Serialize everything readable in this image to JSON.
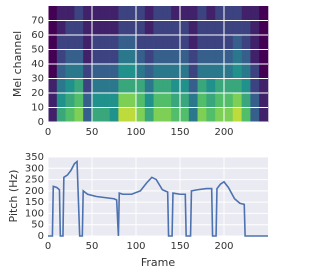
{
  "chart_data": [
    {
      "type": "heatmap",
      "ylabel": "Mel channel",
      "colormap": "viridis",
      "grid": true,
      "xlim": [
        0,
        250
      ],
      "ylim": [
        0,
        80
      ],
      "xticks": [
        0,
        50,
        100,
        150,
        200
      ],
      "yticks": [
        0,
        10,
        20,
        30,
        40,
        50,
        60,
        70
      ],
      "xbins": [
        0,
        10,
        20,
        30,
        40,
        50,
        60,
        70,
        80,
        90,
        100,
        110,
        120,
        130,
        140,
        150,
        160,
        170,
        180,
        190,
        200,
        210,
        220,
        230,
        240,
        250
      ],
      "ybins": [
        0,
        10,
        20,
        30,
        40,
        50,
        60,
        70,
        80
      ],
      "z": [
        [
          0.1,
          0.6,
          0.7,
          0.8,
          0.3,
          0.6,
          0.6,
          0.5,
          0.9,
          0.9,
          0.8,
          0.6,
          0.8,
          0.8,
          0.7,
          0.7,
          0.4,
          0.8,
          0.7,
          0.8,
          0.8,
          0.9,
          0.7,
          0.3,
          0.1
        ],
        [
          0.1,
          0.5,
          0.6,
          0.7,
          0.3,
          0.5,
          0.5,
          0.5,
          0.8,
          0.8,
          0.7,
          0.5,
          0.7,
          0.7,
          0.6,
          0.6,
          0.4,
          0.7,
          0.6,
          0.7,
          0.7,
          0.8,
          0.6,
          0.3,
          0.1
        ],
        [
          0.1,
          0.4,
          0.5,
          0.6,
          0.2,
          0.4,
          0.4,
          0.4,
          0.6,
          0.6,
          0.6,
          0.4,
          0.6,
          0.6,
          0.5,
          0.5,
          0.3,
          0.6,
          0.5,
          0.6,
          0.6,
          0.6,
          0.5,
          0.2,
          0.1
        ],
        [
          0,
          0.3,
          0.4,
          0.4,
          0.2,
          0.3,
          0.3,
          0.3,
          0.5,
          0.5,
          0.4,
          0.3,
          0.4,
          0.4,
          0.4,
          0.4,
          0.2,
          0.4,
          0.4,
          0.4,
          0.4,
          0.5,
          0.4,
          0.2,
          0
        ],
        [
          0,
          0.2,
          0.3,
          0.3,
          0.1,
          0.2,
          0.2,
          0.2,
          0.4,
          0.4,
          0.3,
          0.2,
          0.3,
          0.3,
          0.3,
          0.3,
          0.2,
          0.3,
          0.3,
          0.3,
          0.3,
          0.4,
          0.3,
          0.1,
          0
        ],
        [
          0,
          0.2,
          0.2,
          0.2,
          0.1,
          0.2,
          0.2,
          0.2,
          0.3,
          0.3,
          0.2,
          0.2,
          0.2,
          0.2,
          0.2,
          0.2,
          0.1,
          0.2,
          0.2,
          0.2,
          0.2,
          0.3,
          0.2,
          0.1,
          0
        ],
        [
          0,
          0.1,
          0.2,
          0.2,
          0.1,
          0.1,
          0.1,
          0.1,
          0.2,
          0.2,
          0.2,
          0.1,
          0.2,
          0.2,
          0.2,
          0.2,
          0.1,
          0.2,
          0.2,
          0.2,
          0.2,
          0.2,
          0.2,
          0.1,
          0
        ],
        [
          0,
          0.1,
          0.1,
          0.2,
          0.1,
          0.1,
          0.1,
          0.1,
          0.2,
          0.2,
          0.2,
          0.1,
          0.2,
          0.2,
          0.1,
          0.1,
          0.1,
          0.2,
          0.1,
          0.2,
          0.2,
          0.2,
          0.1,
          0.1,
          0
        ]
      ]
    },
    {
      "type": "line",
      "ylabel": "Pitch (Hz)",
      "xlabel": "Frame",
      "grid": true,
      "color": "#4c72b0",
      "xlim": [
        0,
        250
      ],
      "ylim": [
        0,
        350
      ],
      "xticks": [
        0,
        50,
        100,
        150,
        200
      ],
      "yticks": [
        0,
        50,
        100,
        150,
        200,
        250,
        300,
        350
      ],
      "x": [
        0,
        5,
        6,
        10,
        13,
        14,
        17,
        18,
        22,
        26,
        30,
        33,
        36,
        39,
        40,
        45,
        55,
        65,
        75,
        78,
        80,
        81,
        85,
        95,
        105,
        112,
        118,
        123,
        130,
        136,
        137,
        141,
        142,
        150,
        156,
        157,
        162,
        163,
        170,
        180,
        186,
        187,
        191,
        192,
        196,
        200,
        205,
        212,
        218,
        223,
        224,
        250
      ],
      "values": [
        0,
        0,
        220,
        215,
        205,
        0,
        0,
        260,
        270,
        290,
        320,
        330,
        0,
        0,
        200,
        185,
        175,
        170,
        165,
        160,
        0,
        190,
        185,
        185,
        200,
        235,
        260,
        250,
        205,
        195,
        0,
        0,
        190,
        185,
        185,
        0,
        0,
        200,
        205,
        210,
        210,
        0,
        0,
        210,
        230,
        240,
        215,
        165,
        145,
        140,
        0,
        0
      ]
    }
  ]
}
